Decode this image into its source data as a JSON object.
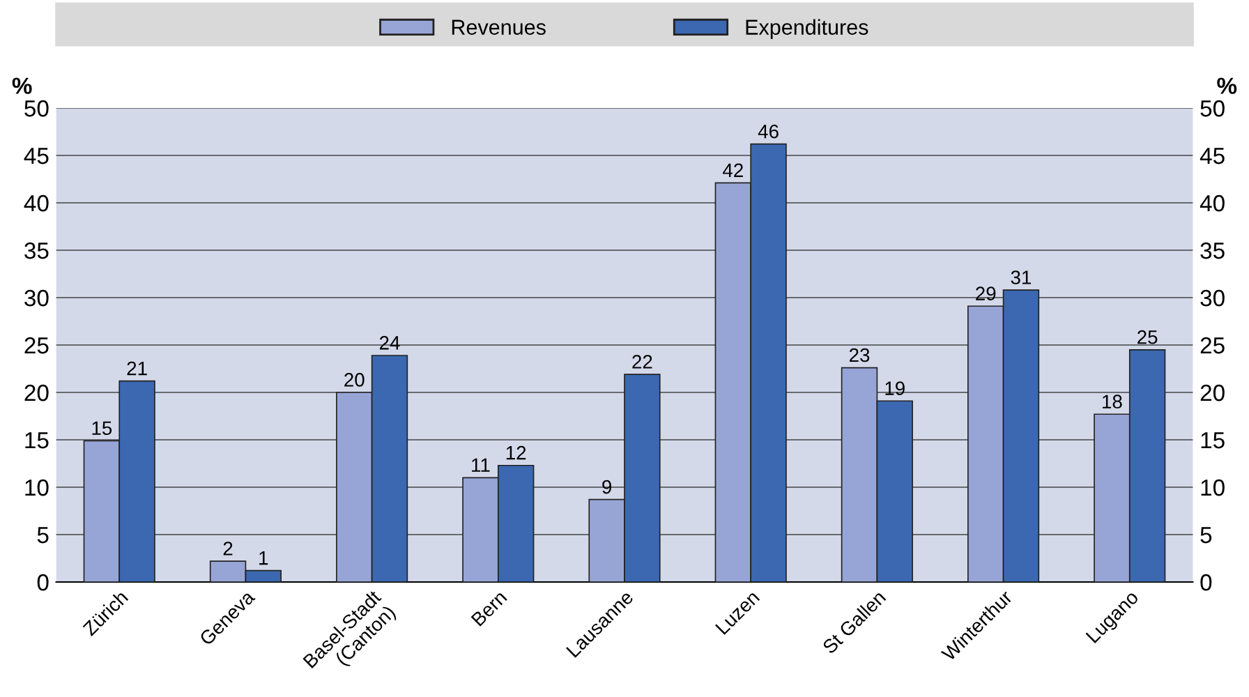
{
  "chart_data": {
    "type": "bar",
    "categories": [
      "Zürich",
      "Geneva",
      "Basel-Stadt\n(Canton)",
      "Bern",
      "Lausanne",
      "Luzen",
      "St Gallen",
      "Winterthur",
      "Lugano"
    ],
    "series": [
      {
        "name": "Revenues",
        "color": "#97a5d6",
        "values": [
          14.9,
          2.2,
          20.0,
          11.0,
          8.7,
          42.1,
          22.6,
          29.1,
          17.7
        ],
        "value_labels": [
          "15",
          "2",
          "20",
          "11",
          "9",
          "42",
          "23",
          "29",
          "18"
        ]
      },
      {
        "name": "Expenditures",
        "color": "#3b68b0",
        "values": [
          21.2,
          1.2,
          23.9,
          12.3,
          21.9,
          46.2,
          19.1,
          30.8,
          24.5
        ],
        "value_labels": [
          "21",
          "1",
          "24",
          "12",
          "22",
          "46",
          "19",
          "31",
          "25"
        ]
      }
    ],
    "ylabel": "%",
    "y2label": "%",
    "ylim": [
      0,
      50
    ],
    "yticks": [
      0,
      5,
      10,
      15,
      20,
      25,
      30,
      35,
      40,
      45,
      50
    ],
    "y2lim": [
      0,
      50
    ],
    "y2ticks": [
      0,
      5,
      10,
      15,
      20,
      25,
      30,
      35,
      40,
      45,
      50
    ],
    "grid": "y",
    "legend": "top"
  }
}
